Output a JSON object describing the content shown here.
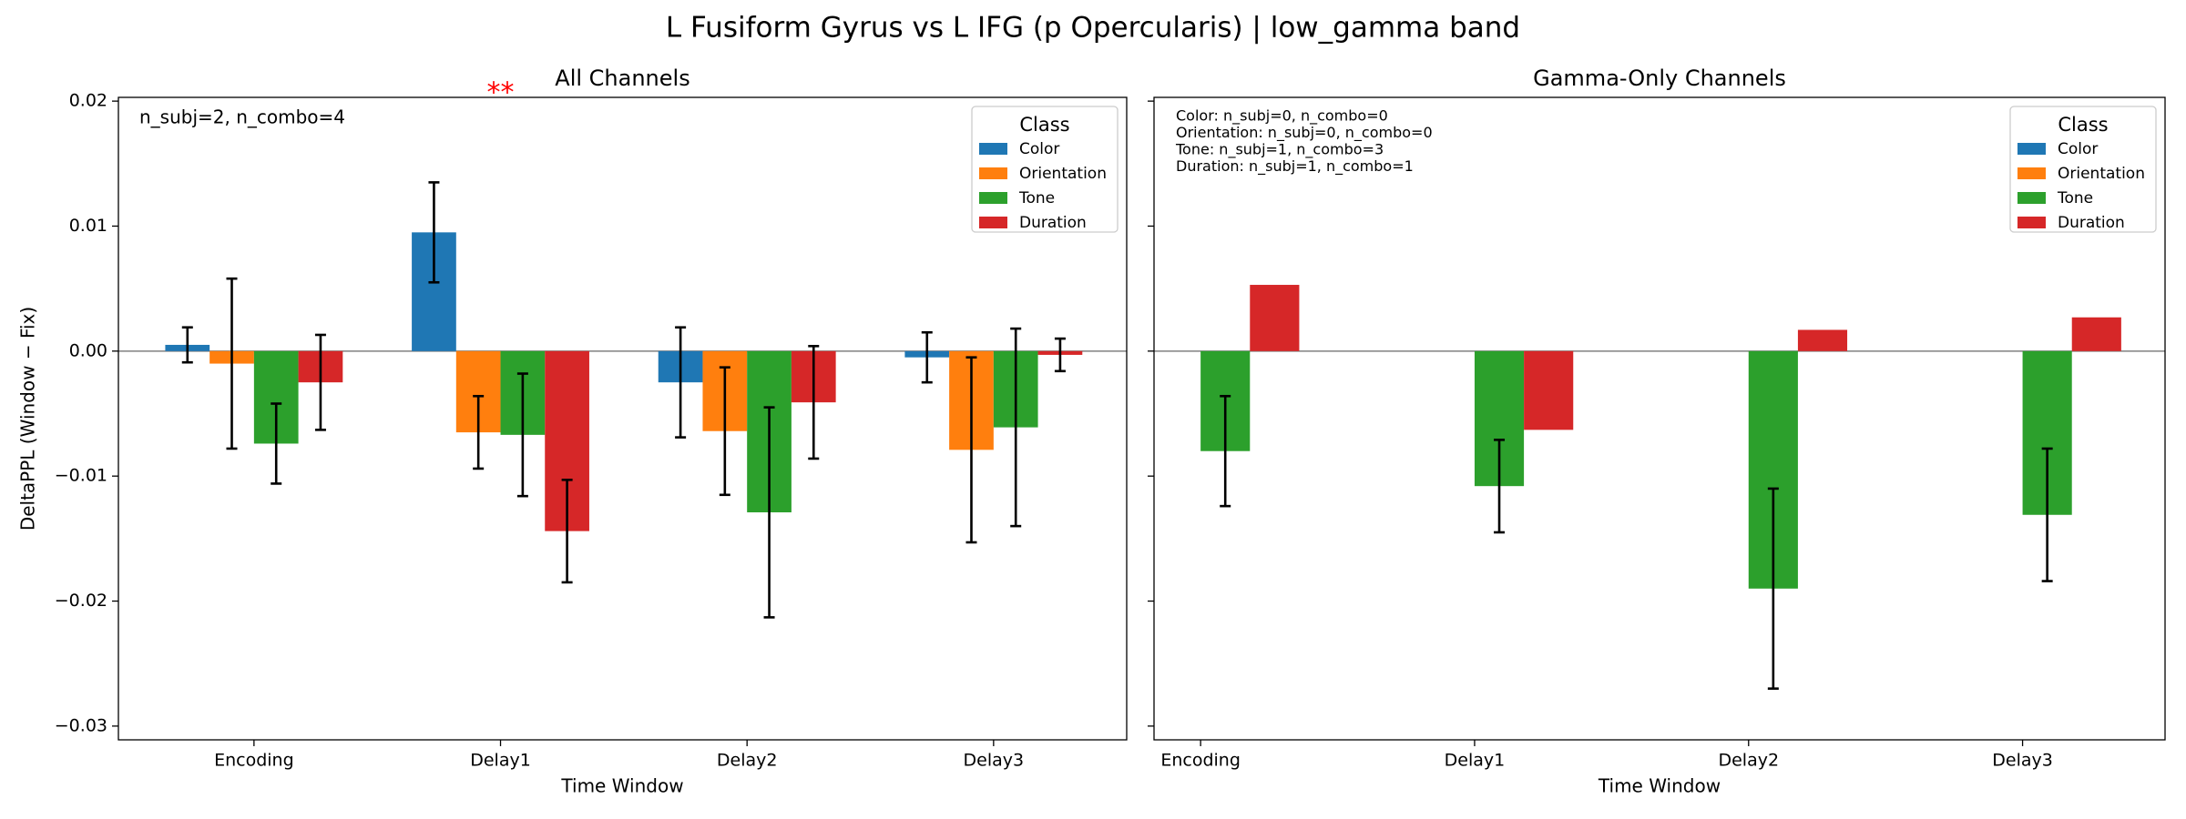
{
  "title": "L Fusiform Gyrus vs L IFG (p Opercularis)  |  low_gamma band",
  "chart_data": [
    {
      "type": "bar",
      "title": "All Channels",
      "x_label": "Time Window",
      "y_label": "DeltaPPL (Window − Fix)",
      "categories": [
        "Encoding",
        "Delay1",
        "Delay2",
        "Delay3"
      ],
      "significance_labels": [
        null,
        "**",
        null,
        null
      ],
      "annotations": [
        "n_subj=2, n_combo=4"
      ],
      "legend_title": "Class",
      "legend": "upper right",
      "ylim": [
        -0.0311,
        0.0203
      ],
      "yticks": [
        0.02,
        0.01,
        {
          "value": 0,
          "label": "0.00"
        },
        {
          "value": -0.01,
          "label": "−0.01"
        },
        {
          "value": -0.02,
          "label": "−0.02"
        },
        {
          "value": -0.03,
          "label": "−0.03"
        }
      ],
      "series": [
        {
          "name": "Color",
          "color": "#1f77b4",
          "values": [
            0.0005,
            0.0095,
            -0.0025,
            -0.0005
          ],
          "errors": [
            0.0014,
            0.004,
            0.0044,
            0.002
          ]
        },
        {
          "name": "Orientation",
          "color": "#ff7f0e",
          "values": [
            -0.001,
            -0.0065,
            -0.0064,
            -0.0079
          ],
          "errors": [
            0.0068,
            0.0029,
            0.0051,
            0.0074
          ]
        },
        {
          "name": "Tone",
          "color": "#2ca02c",
          "values": [
            -0.0074,
            -0.0067,
            -0.0129,
            -0.0061
          ],
          "errors": [
            0.0032,
            0.0049,
            0.0084,
            0.0079
          ]
        },
        {
          "name": "Duration",
          "color": "#d62728",
          "values": [
            -0.0025,
            -0.0144,
            -0.0041,
            -0.0003
          ],
          "errors": [
            0.0038,
            0.0041,
            0.0045,
            0.0013
          ]
        }
      ]
    },
    {
      "type": "bar",
      "title": "Gamma-Only Channels",
      "x_label": "Time Window",
      "categories": [
        "Encoding",
        "Delay1",
        "Delay2",
        "Delay3"
      ],
      "annotations": [
        "Color: n_subj=0, n_combo=0",
        "Orientation: n_subj=0, n_combo=0",
        "Tone: n_subj=1, n_combo=3",
        "Duration: n_subj=1, n_combo=1"
      ],
      "legend_title": "Class",
      "legend": "upper right",
      "ylim": [
        -0.0311,
        0.0203
      ],
      "yticks": [
        0.02,
        0.01,
        0,
        -0.01,
        -0.02,
        -0.03
      ],
      "series": [
        {
          "name": "Color",
          "color": "#1f77b4",
          "values": [
            null,
            null,
            null,
            null
          ],
          "errors": [
            null,
            null,
            null,
            null
          ]
        },
        {
          "name": "Orientation",
          "color": "#ff7f0e",
          "values": [
            null,
            null,
            null,
            null
          ],
          "errors": [
            null,
            null,
            null,
            null
          ]
        },
        {
          "name": "Tone",
          "color": "#2ca02c",
          "values": [
            -0.008,
            -0.0108,
            -0.019,
            -0.0131
          ],
          "errors": [
            0.0044,
            0.0037,
            0.008,
            0.0053
          ]
        },
        {
          "name": "Duration",
          "color": "#d62728",
          "values": [
            0.0053,
            -0.0063,
            0.0017,
            0.0027
          ],
          "errors": [
            null,
            null,
            null,
            null
          ]
        }
      ]
    }
  ]
}
